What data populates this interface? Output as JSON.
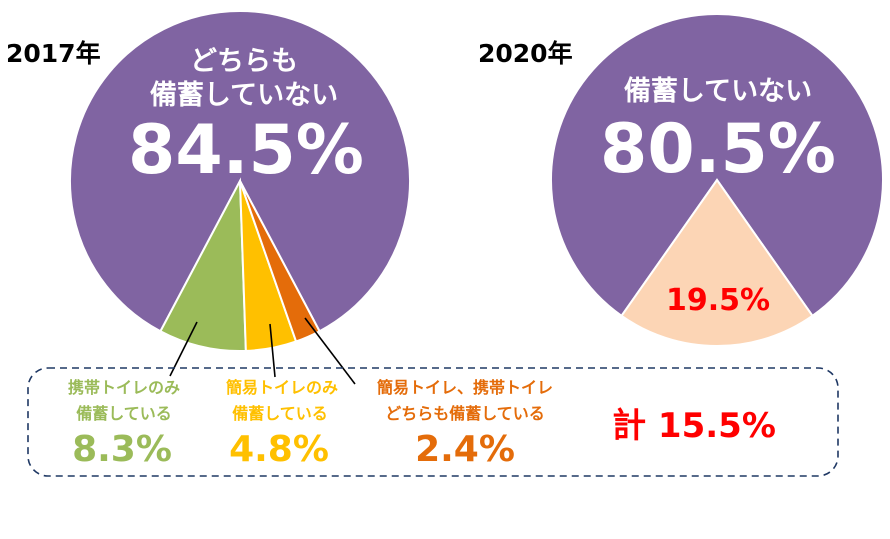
{
  "chart_data": [
    {
      "type": "pie",
      "title": "2017年",
      "slices": [
        {
          "label": "どちらも備蓄していない",
          "value": 84.5,
          "value_label": "84.5%",
          "color": "#8064A2"
        },
        {
          "label": "携帯トイレのみ備蓄している",
          "value": 8.3,
          "value_label": "8.3%",
          "color": "#9BBB59"
        },
        {
          "label": "簡易トイレのみ備蓄している",
          "value": 4.8,
          "value_label": "4.8%",
          "color": "#FFC000"
        },
        {
          "label": "簡易トイレ、携帯トイレどちらも備蓄している",
          "value": 2.4,
          "value_label": "2.4%",
          "color": "#E46C0A"
        }
      ],
      "big_label_lines": [
        "どちらも",
        "備蓄していない"
      ],
      "legend_lines": [
        [
          "携帯トイレのみ",
          "備蓄している"
        ],
        [
          "簡易トイレのみ",
          "備蓄している"
        ],
        [
          "簡易トイレ、携帯トイレ",
          "どちらも備蓄している"
        ]
      ],
      "total_text": "計 15.5%"
    },
    {
      "type": "pie",
      "title": "2020年",
      "slices": [
        {
          "label": "備蓄していない",
          "value": 80.5,
          "value_label": "80.5%",
          "color": "#8064A2"
        },
        {
          "label": "",
          "value": 19.5,
          "value_label": "19.5%",
          "color": "#FCD5B5"
        }
      ],
      "big_label_lines": [
        "備蓄していない"
      ]
    }
  ],
  "colors": {
    "small_value_text": "#FF0000",
    "total_text": "#FF0000",
    "legend_border": "#1F3864"
  }
}
